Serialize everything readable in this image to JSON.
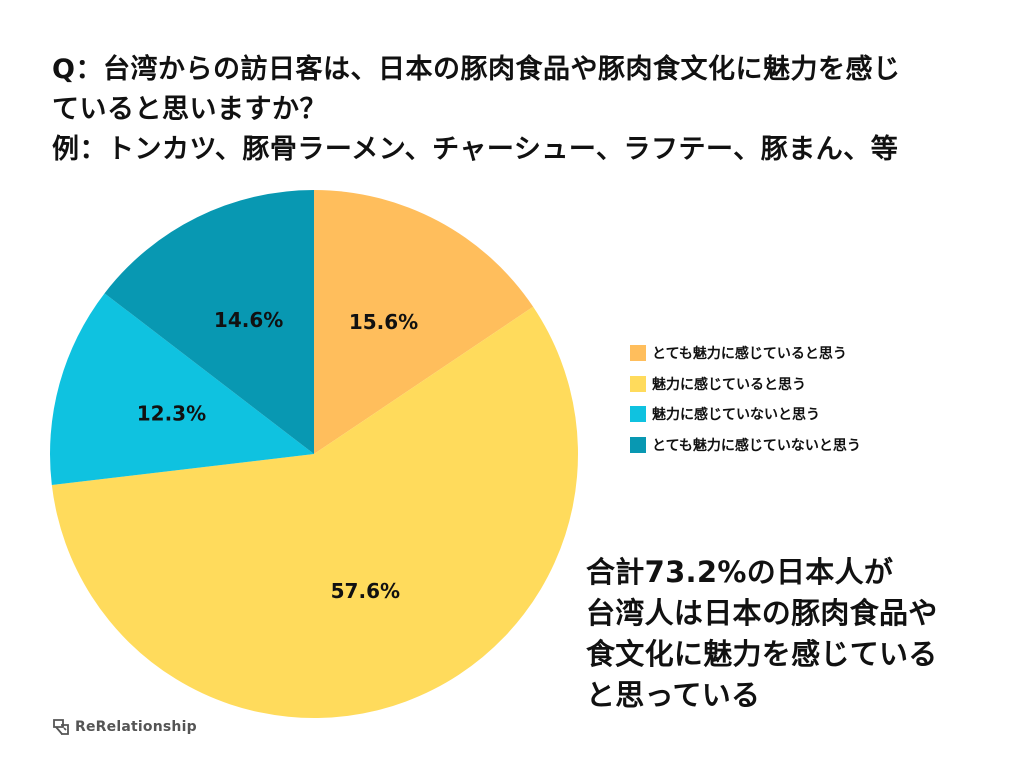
{
  "question": {
    "line1": "Q：台湾からの訪日客は、日本の豚肉食品や豚肉食文化に魅力を感じ",
    "line2": "ていると思いますか？",
    "line3": "例：トンカツ、豚骨ラーメン、チャーシュー、ラフテー、豚まん、等"
  },
  "chart_data": {
    "type": "pie",
    "title": "Q：台湾からの訪日客は、日本の豚肉食品や豚肉食文化に魅力を感じていると思いますか？",
    "unit": "%",
    "start": "12 o'clock, clockwise",
    "slices": [
      {
        "label": "とても魅力に感じていると思う",
        "value": 15.6,
        "display": "15.6%",
        "color": "#FFBE5C"
      },
      {
        "label": "魅力に感じていると思う",
        "value": 57.6,
        "display": "57.6%",
        "color": "#FFDB5C"
      },
      {
        "label": "魅力に感じていないと思う",
        "value": 12.3,
        "display": "12.3%",
        "color": "#0FC2E0"
      },
      {
        "label": "とても魅力に感じていないと思う",
        "value": 14.6,
        "display": "14.6%",
        "color": "#0898B2"
      }
    ],
    "legend_position": "right"
  },
  "summary": {
    "line1": "合計73.2%の日本人が",
    "line2": "台湾人は日本の豚肉食品や",
    "line3": "食文化に魅力を感じている",
    "line4": "と思っている"
  },
  "brand": {
    "name": "ReRelationship",
    "icon": "rerelationship-logo-icon"
  }
}
